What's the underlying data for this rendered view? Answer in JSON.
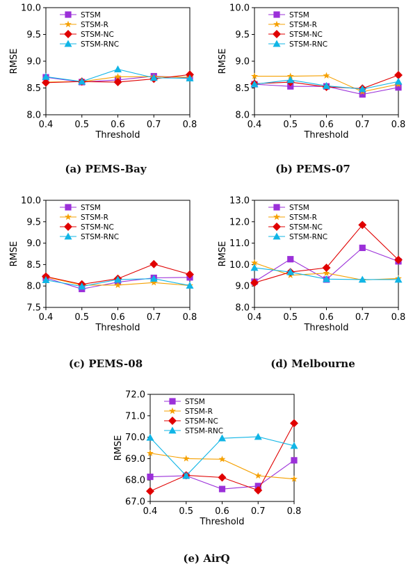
{
  "figure": {
    "captions": [
      "(a) PEMS-Bay",
      "(b) PEMS-07",
      "(c) PEMS-08",
      "(d) Melbourne",
      "(e) AirQ"
    ]
  },
  "series_styles": [
    {
      "name": "STSM",
      "color": "#9b30d9",
      "marker": "square"
    },
    {
      "name": "STSM-R",
      "color": "#f5a000",
      "marker": "star"
    },
    {
      "name": "STSM-NC",
      "color": "#e00000",
      "marker": "diamond"
    },
    {
      "name": "STSM-RNC",
      "color": "#10b5e6",
      "marker": "triangle"
    }
  ],
  "chart_data": [
    {
      "type": "line",
      "title": "",
      "xlabel": "Threshold",
      "ylabel": "RMSE",
      "x": [
        0.4,
        0.5,
        0.6,
        0.7,
        0.8
      ],
      "xticks": [
        "0.4",
        "0.5",
        "0.6",
        "0.7",
        "0.8"
      ],
      "ylim": [
        8.0,
        10.0
      ],
      "yticks": [
        "8.0",
        "8.5",
        "9.0",
        "9.5",
        "10.0"
      ],
      "legend": "top-left",
      "series": [
        {
          "name": "STSM",
          "values": [
            8.7,
            8.61,
            8.65,
            8.72,
            8.69
          ]
        },
        {
          "name": "STSM-R",
          "values": [
            8.61,
            8.62,
            8.71,
            8.71,
            8.7
          ]
        },
        {
          "name": "STSM-NC",
          "values": [
            8.6,
            8.62,
            8.61,
            8.67,
            8.75
          ]
        },
        {
          "name": "STSM-RNC",
          "values": [
            8.71,
            8.62,
            8.85,
            8.69,
            8.68
          ]
        }
      ]
    },
    {
      "type": "line",
      "title": "",
      "xlabel": "Threshold",
      "ylabel": "RMSE",
      "x": [
        0.4,
        0.5,
        0.6,
        0.7,
        0.8
      ],
      "xticks": [
        "0.4",
        "0.5",
        "0.6",
        "0.7",
        "0.8"
      ],
      "ylim": [
        8.0,
        10.0
      ],
      "yticks": [
        "8.0",
        "8.5",
        "9.0",
        "9.5",
        "10.0"
      ],
      "legend": "top-left",
      "series": [
        {
          "name": "STSM",
          "values": [
            8.57,
            8.53,
            8.53,
            8.38,
            8.51
          ]
        },
        {
          "name": "STSM-R",
          "values": [
            8.72,
            8.72,
            8.73,
            8.43,
            8.57
          ]
        },
        {
          "name": "STSM-NC",
          "values": [
            8.58,
            8.61,
            8.52,
            8.49,
            8.74
          ]
        },
        {
          "name": "STSM-RNC",
          "values": [
            8.57,
            8.65,
            8.54,
            8.48,
            8.62
          ]
        }
      ]
    },
    {
      "type": "line",
      "title": "",
      "xlabel": "Threshold",
      "ylabel": "RMSE",
      "x": [
        0.4,
        0.5,
        0.6,
        0.7,
        0.8
      ],
      "xticks": [
        "0.4",
        "0.5",
        "0.6",
        "0.7",
        "0.8"
      ],
      "ylim": [
        7.5,
        10.0
      ],
      "yticks": [
        "7.5",
        "8.0",
        "8.5",
        "9.0",
        "9.5",
        "10.0"
      ],
      "legend": "top-left",
      "series": [
        {
          "name": "STSM",
          "values": [
            8.19,
            7.93,
            8.09,
            8.19,
            8.2
          ]
        },
        {
          "name": "STSM-R",
          "values": [
            8.21,
            8.02,
            8.02,
            8.08,
            8.01
          ]
        },
        {
          "name": "STSM-NC",
          "values": [
            8.22,
            8.04,
            8.17,
            8.51,
            8.27
          ]
        },
        {
          "name": "STSM-RNC",
          "values": [
            8.14,
            7.99,
            8.15,
            8.17,
            8.01
          ]
        }
      ]
    },
    {
      "type": "line",
      "title": "",
      "xlabel": "Threshold",
      "ylabel": "RMSE",
      "x": [
        0.4,
        0.5,
        0.6,
        0.7,
        0.8
      ],
      "xticks": [
        "0.4",
        "0.5",
        "0.6",
        "0.7",
        "0.8"
      ],
      "ylim": [
        8.0,
        13.0
      ],
      "yticks": [
        "8.0",
        "9.0",
        "10.0",
        "11.0",
        "12.0",
        "13.0"
      ],
      "legend": "top-left",
      "series": [
        {
          "name": "STSM",
          "values": [
            9.2,
            10.25,
            9.3,
            10.78,
            10.15
          ]
        },
        {
          "name": "STSM-R",
          "values": [
            10.08,
            9.5,
            9.6,
            9.28,
            9.35
          ]
        },
        {
          "name": "STSM-NC",
          "values": [
            9.15,
            9.65,
            9.85,
            11.85,
            10.22
          ]
        },
        {
          "name": "STSM-RNC",
          "values": [
            9.85,
            9.65,
            9.32,
            9.3,
            9.3
          ]
        }
      ]
    },
    {
      "type": "line",
      "title": "",
      "xlabel": "Threshold",
      "ylabel": "RMSE",
      "x": [
        0.4,
        0.5,
        0.6,
        0.7,
        0.8
      ],
      "xticks": [
        "0.4",
        "0.5",
        "0.6",
        "0.7",
        "0.8"
      ],
      "ylim": [
        67.0,
        72.0
      ],
      "yticks": [
        "67.0",
        "68.0",
        "69.0",
        "70.0",
        "71.0",
        "72.0"
      ],
      "legend": "top-left",
      "series": [
        {
          "name": "STSM",
          "values": [
            68.15,
            68.2,
            67.58,
            67.72,
            68.92
          ]
        },
        {
          "name": "STSM-R",
          "values": [
            69.25,
            69.0,
            68.97,
            68.2,
            68.05
          ]
        },
        {
          "name": "STSM-NC",
          "values": [
            67.48,
            68.22,
            68.12,
            67.52,
            70.65
          ]
        },
        {
          "name": "STSM-RNC",
          "values": [
            69.98,
            68.2,
            69.95,
            70.02,
            69.6
          ]
        }
      ]
    }
  ]
}
